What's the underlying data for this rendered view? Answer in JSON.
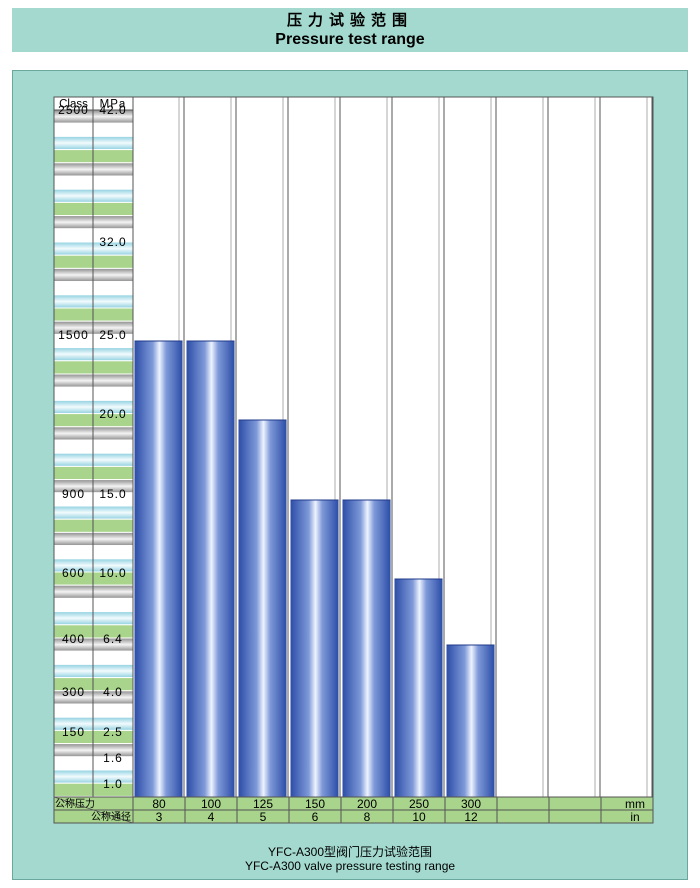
{
  "header": {
    "title_zh": "压力试验范围",
    "title_en": "Pressure test range"
  },
  "footer": {
    "caption_zh": "YFC-A300型阀门压力试验范围",
    "caption_en": "YFC-A300 valve pressure testing range"
  },
  "axis": {
    "class_header": "Class",
    "mpa_header": "MPa",
    "pressure_row_label": "公称压力",
    "diameter_row_label": "公称通径",
    "mm_unit": "mm",
    "in_unit": "in",
    "ticks": [
      {
        "class": "2500",
        "mpa": "42.0",
        "value": 42.0
      },
      {
        "class": "",
        "mpa": "32.0",
        "value": 32.0
      },
      {
        "class": "1500",
        "mpa": "25.0",
        "value": 25.0
      },
      {
        "class": "",
        "mpa": "20.0",
        "value": 20.0
      },
      {
        "class": "900",
        "mpa": "15.0",
        "value": 15.0
      },
      {
        "class": "600",
        "mpa": "10.0",
        "value": 10.0
      },
      {
        "class": "400",
        "mpa": "6.4",
        "value": 6.4
      },
      {
        "class": "300",
        "mpa": "4.0",
        "value": 4.0
      },
      {
        "class": "150",
        "mpa": "2.5",
        "value": 2.5
      },
      {
        "class": "",
        "mpa": "1.6",
        "value": 1.6
      },
      {
        "class": "",
        "mpa": "1.0",
        "value": 1.0
      }
    ]
  },
  "colors": {
    "background": "#a3d9cf",
    "stripe_green": "#a8d48c",
    "stripe_gray": "#a9a9a9",
    "stripe_cyan": "#bfe7ef",
    "bar_blue": "#3a5fb5",
    "bar_highlight": "#eef3ff"
  },
  "chart_data": {
    "type": "bar",
    "title": "压力试验范围 Pressure test range",
    "ylabel": "MPa",
    "y_scale": "categorical (non-linear tick spacing)",
    "categories_mm": [
      "80",
      "100",
      "125",
      "150",
      "200",
      "250",
      "300",
      "",
      "",
      ""
    ],
    "categories_in": [
      "3",
      "4",
      "5",
      "6",
      "8",
      "10",
      "12",
      "",
      "",
      ""
    ],
    "values": [
      25.0,
      25.0,
      20.0,
      15.0,
      15.0,
      10.0,
      6.4
    ],
    "grid": true
  }
}
